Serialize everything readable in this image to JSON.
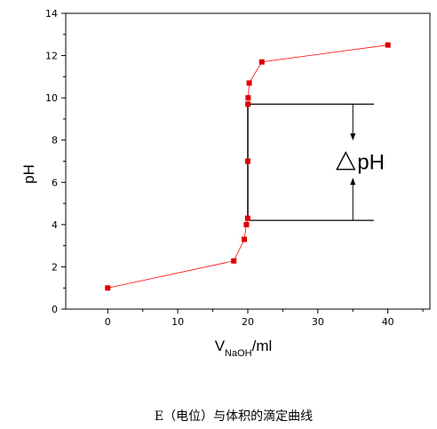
{
  "chart_data": {
    "type": "line",
    "title": "",
    "xlabel_main": "V",
    "xlabel_sub": "NaOH",
    "xlabel_unit": "/ml",
    "ylabel": "pH",
    "xlim": [
      -6,
      46
    ],
    "ylim": [
      0,
      14
    ],
    "xticks": [
      0,
      10,
      20,
      30,
      40
    ],
    "yticks": [
      0,
      2,
      4,
      6,
      8,
      10,
      12,
      14
    ],
    "grid": false,
    "legend": "none",
    "series": [
      {
        "color": "#ff0000",
        "marker_color": "#dd0000",
        "x": [
          0,
          18,
          19.5,
          19.8,
          19.98,
          20.0,
          20.02,
          20.05,
          20.2,
          22,
          40
        ],
        "y": [
          1.0,
          2.28,
          3.3,
          4.0,
          4.3,
          7.0,
          9.7,
          10.0,
          10.7,
          11.7,
          12.5
        ]
      }
    ],
    "vertical_line": {
      "x": 20.0,
      "y_from": 4.3,
      "y_to": 9.7,
      "color": "#000000"
    },
    "annotation": {
      "text": "pH",
      "symbol": "triangle",
      "upper_level": 9.7,
      "lower_level": 4.2,
      "x_start": 20.3,
      "x_end": 38,
      "arrow_x": 35
    }
  },
  "caption": "E（电位）与体积的滴定曲线"
}
